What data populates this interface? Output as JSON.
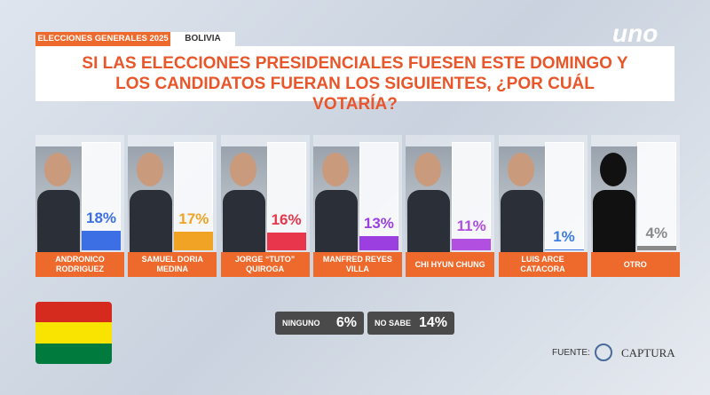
{
  "header": {
    "tag": "ELECCIONES GENERALES 2025",
    "country": "BOLIVIA",
    "logo": "uno"
  },
  "chart_data": {
    "type": "bar",
    "title": "SI LAS ELECCIONES PRESIDENCIALES FUESEN ESTE DOMINGO Y LOS CANDIDATOS FUERAN LOS SIGUIENTES, ¿POR CUÁL VOTARÍA?",
    "categories": [
      "ANDRONICO RODRIGUEZ",
      "SAMUEL DORIA MEDINA",
      "JORGE “TUTO” QUIROGA",
      "MANFRED REYES VILLA",
      "CHI HYUN CHUNG",
      "LUIS ARCE CATACORA",
      "OTRO"
    ],
    "values": [
      18,
      17,
      16,
      13,
      11,
      1,
      4
    ],
    "value_labels": [
      "18%",
      "17%",
      "16%",
      "13%",
      "11%",
      "1%",
      "4%"
    ],
    "colors": [
      "#3c6fe3",
      "#f0a324",
      "#e8364c",
      "#9b3fe0",
      "#b04fe0",
      "#3d7be4",
      "#8a8a8a"
    ],
    "ylim": [
      0,
      100
    ]
  },
  "extra": {
    "categories": [
      "NINGUNO",
      "NO SABE"
    ],
    "values": [
      6,
      14
    ],
    "value_labels": [
      "6%",
      "14%"
    ]
  },
  "footer": {
    "source_label": "FUENTE:",
    "source": "CAPTURA"
  }
}
